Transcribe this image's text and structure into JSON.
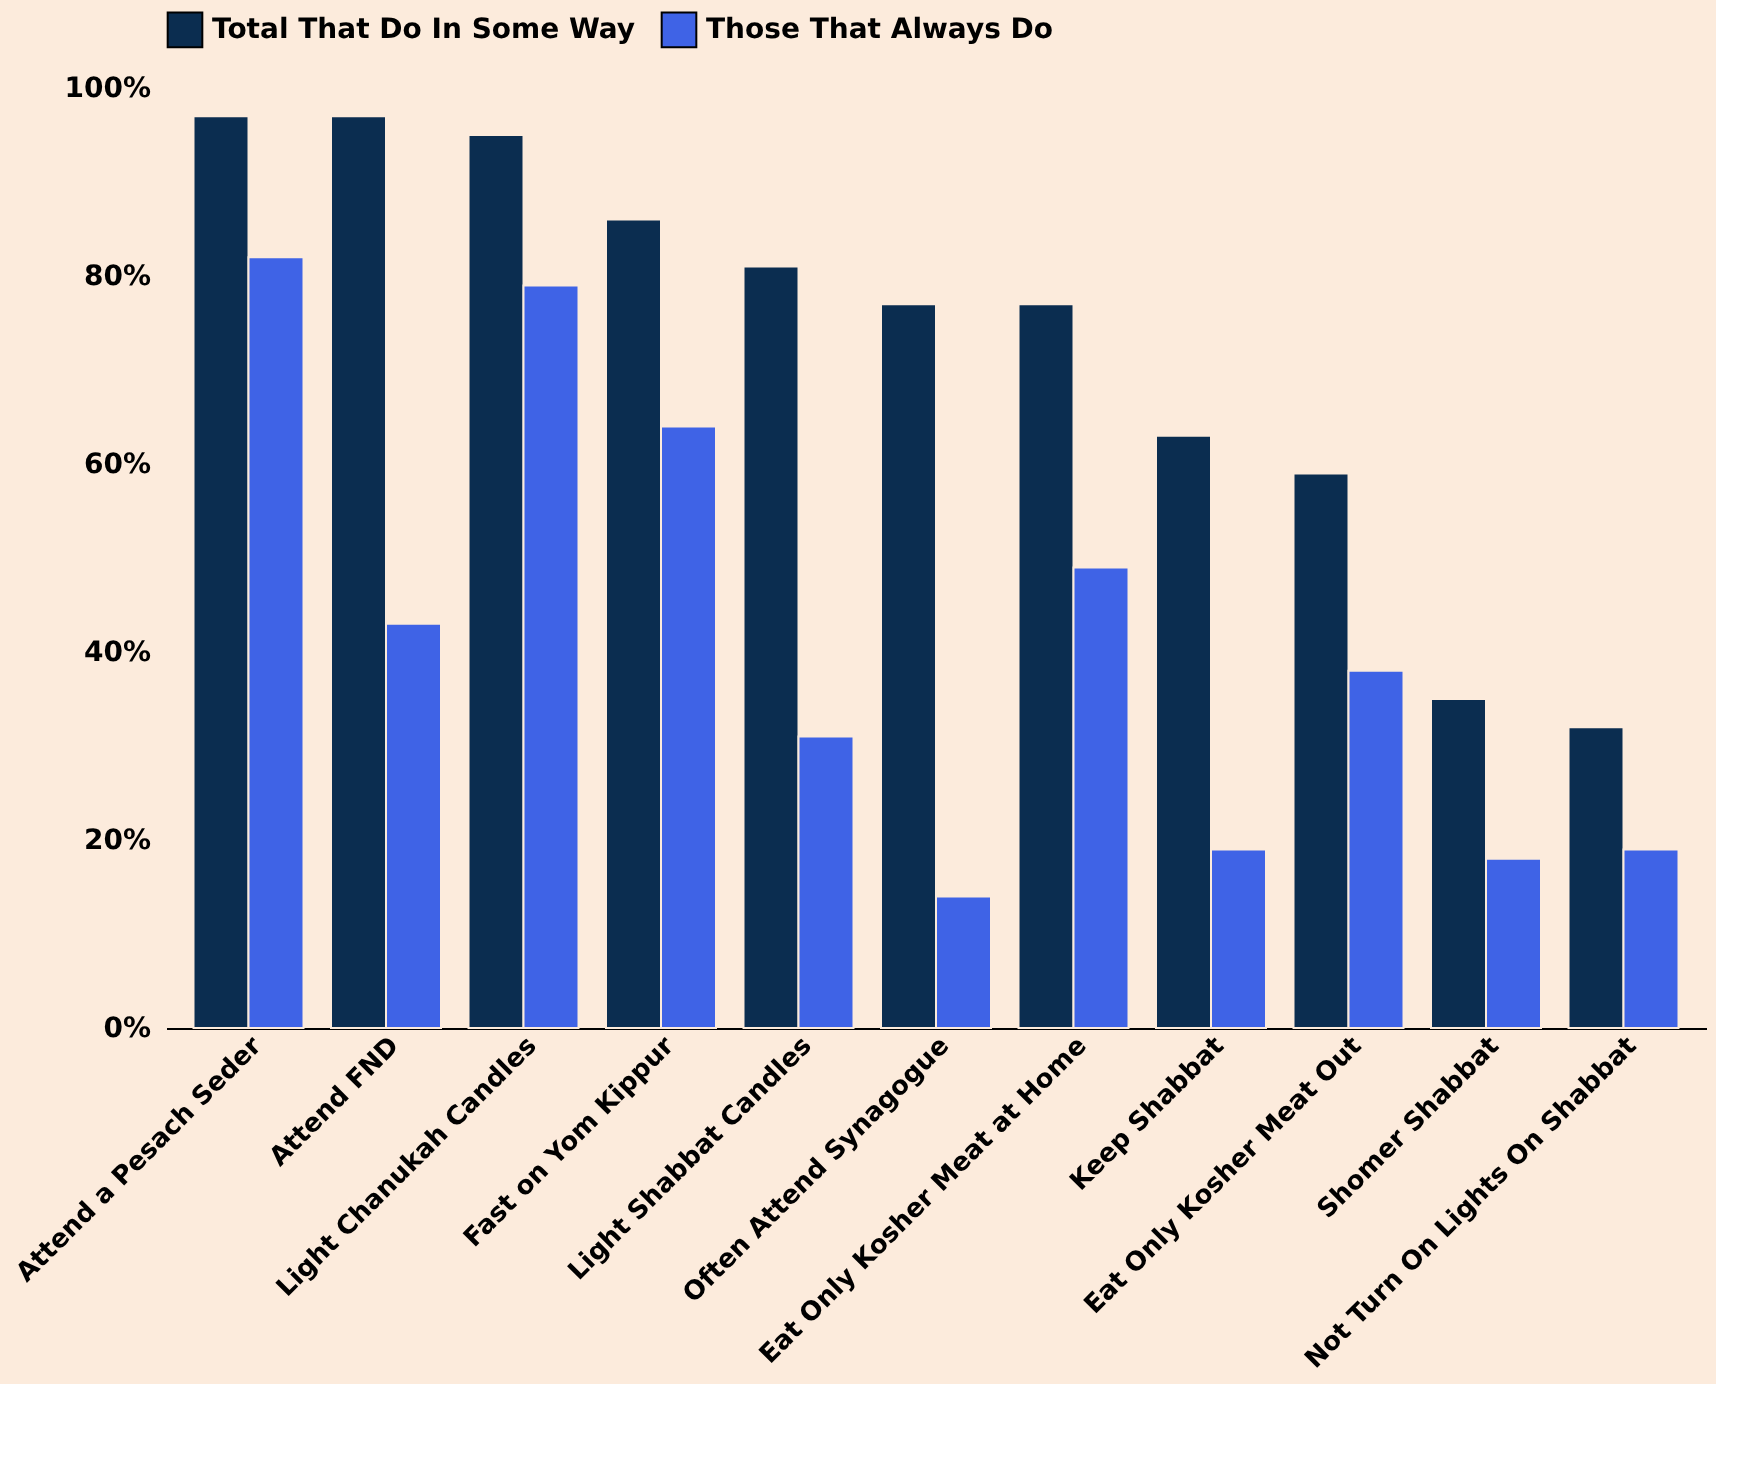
{
  "chart_data": {
    "type": "bar",
    "categories": [
      "Attend a Pesach Seder",
      "Attend FND",
      "Light Chanukah Candles",
      "Fast on Yom Kippur",
      "Light Shabbat Candles",
      "Often Attend Synagogue",
      "Eat Only Kosher Meat at Home",
      "Keep Shabbat",
      "Eat Only Kosher Meat Out",
      "Shomer Shabbat",
      "Not Turn On Lights On Shabbat"
    ],
    "series": [
      {
        "name": "Total That Do In Some Way",
        "color": "#0b2d50",
        "values": [
          97,
          97,
          95,
          86,
          81,
          77,
          77,
          63,
          59,
          35,
          32
        ]
      },
      {
        "name": "Those That Always Do",
        "color": "#3f63e6",
        "values": [
          82,
          43,
          79,
          64,
          31,
          14,
          49,
          19,
          38,
          18,
          19
        ]
      }
    ],
    "ylim": [
      0,
      100
    ],
    "yticks": [
      {
        "value": 0,
        "label": "0%"
      },
      {
        "value": 20,
        "label": "20%"
      },
      {
        "value": 40,
        "label": "40%"
      },
      {
        "value": 60,
        "label": "60%"
      },
      {
        "value": 80,
        "label": "80%"
      },
      {
        "value": 100,
        "label": "100%"
      }
    ],
    "grid": false,
    "legend": "top"
  }
}
